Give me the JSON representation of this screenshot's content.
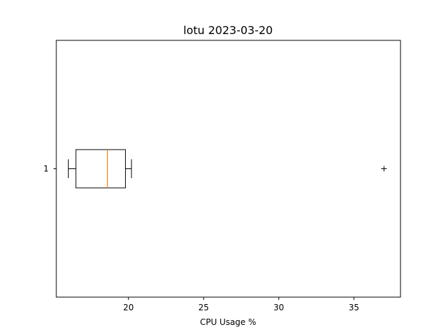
{
  "chart_data": {
    "type": "boxplot",
    "orientation": "horizontal",
    "title": "lotu 2023-03-20",
    "xlabel": "CPU Usage %",
    "ylabel": "",
    "xlim": [
      15.2,
      38.1
    ],
    "x_ticks": [
      20,
      25,
      30,
      35
    ],
    "y_ticks": [
      "1"
    ],
    "grid": false,
    "colors": {
      "box": "#000000",
      "median": "#ff7f0e",
      "frame": "#000000"
    },
    "boxes": [
      {
        "category": "1",
        "whisker_low": 16.0,
        "q1": 16.5,
        "median": 18.6,
        "q3": 19.8,
        "whisker_high": 20.2,
        "outliers": [
          37.0
        ]
      }
    ]
  }
}
